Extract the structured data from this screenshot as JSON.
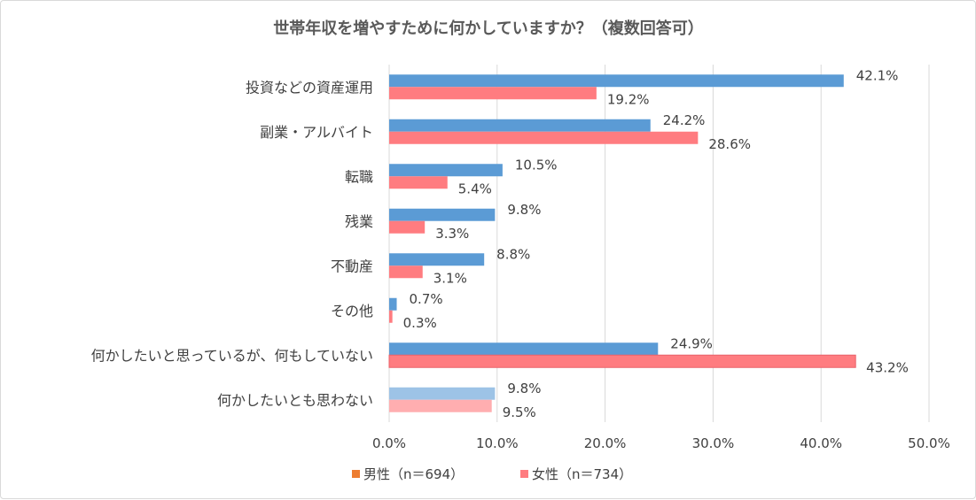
{
  "chart_data": {
    "type": "bar",
    "orientation": "horizontal",
    "title": "世帯年収を増やすために何かしていますか？（複数回答可）",
    "categories": [
      "投資などの資産運用",
      "副業・アルバイト",
      "転職",
      "残業",
      "不動産",
      "その他",
      "何かしたいと思っているが、何もしていない",
      "何かしたいとも思わない"
    ],
    "series": [
      {
        "name": "男性（n＝694）",
        "values": [
          42.1,
          24.2,
          10.5,
          9.8,
          8.8,
          0.7,
          24.9,
          9.8
        ],
        "labels": [
          "42.1%",
          "24.2%",
          "10.5%",
          "9.8%",
          "8.8%",
          "0.7%",
          "24.9%",
          "9.8%"
        ]
      },
      {
        "name": "女性（n＝734）",
        "values": [
          19.2,
          28.6,
          5.4,
          3.3,
          3.1,
          0.3,
          43.2,
          9.5
        ],
        "labels": [
          "19.2%",
          "28.6%",
          "5.4%",
          "3.3%",
          "3.1%",
          "0.3%",
          "43.2%",
          "9.5%"
        ]
      }
    ],
    "xlim": [
      0,
      50
    ],
    "xticks": [
      0,
      10,
      20,
      30,
      40,
      50
    ],
    "xtick_labels": [
      "0.0%",
      "10.0%",
      "20.0%",
      "30.0%",
      "40.0%",
      "50.0%"
    ],
    "grid": true,
    "legend_position": "bottom",
    "legend_marker_colors": [
      "#ed7d31",
      "#ff7c80"
    ],
    "colors": {
      "male": "#5b9bd5",
      "female": "#ff7c80",
      "male_light": "#9dc3e6",
      "female_light": "#ffaeb0",
      "grid": "#d9d9d9"
    }
  }
}
